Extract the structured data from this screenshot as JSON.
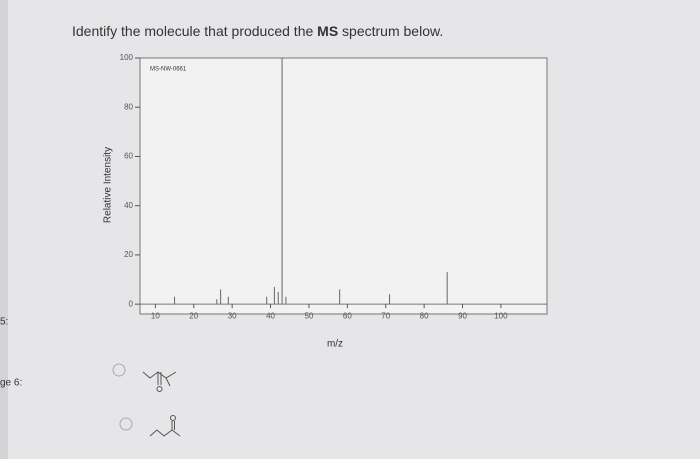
{
  "question": [
    "Identify the molecule that produced the ",
    "MS",
    " spectrum below."
  ],
  "sidebar": [
    "5:",
    "ge 6:"
  ],
  "chart_data": {
    "type": "stem",
    "annotation": "MS-NW-0661",
    "x_label": "m/z",
    "y_label": "Relative Intensity",
    "x": [
      15,
      26,
      27,
      29,
      39,
      41,
      42,
      43,
      44,
      58,
      71,
      86
    ],
    "values": [
      3,
      2,
      6,
      3,
      3,
      7,
      5,
      100,
      3,
      6,
      4,
      13
    ],
    "color": "#666666",
    "xlim": [
      6,
      112
    ],
    "ylim": [
      -4,
      100
    ],
    "xticks": [
      10,
      20,
      30,
      40,
      50,
      60,
      70,
      80,
      90,
      100
    ],
    "yticks": [
      0,
      20,
      40,
      60,
      80,
      100
    ]
  }
}
